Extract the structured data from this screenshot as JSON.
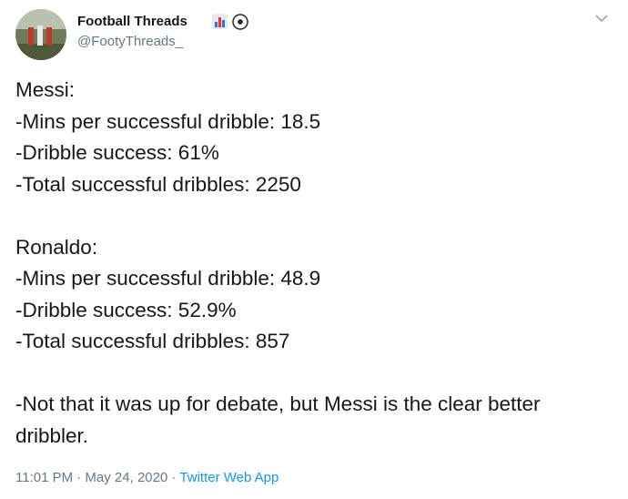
{
  "tweet": {
    "author": {
      "name": "Football Threads",
      "handle": "@FootyThreads_"
    },
    "paragraphs": [
      [
        "Messi:",
        "-Mins per successful dribble: 18.5",
        "-Dribble success: 61%",
        "-Total successful dribbles: 2250"
      ],
      [
        "Ronaldo:",
        "-Mins per successful dribble: 48.9",
        "-Dribble success: 52.9%",
        "-Total successful dribbles: 857"
      ],
      [
        "-Not that it was up for debate, but Messi is the clear better dribbler."
      ]
    ],
    "timestamp": "11:01 PM · May 24, 2020",
    "separator": "·",
    "source": "Twitter Web App"
  }
}
